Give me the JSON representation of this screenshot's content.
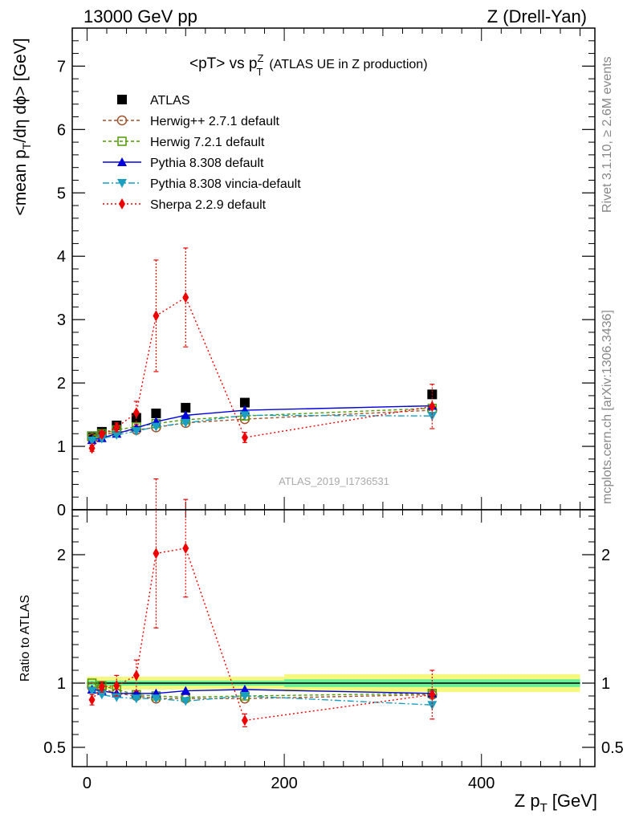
{
  "header": {
    "left": "13000 GeV pp",
    "right": "Z (Drell-Yan)"
  },
  "side_text": {
    "rivet": "Rivet 3.1.10, ≥ 2.6M events",
    "mcplots": "mcplots.cern.ch [arXiv:1306.3436]"
  },
  "chart_data": [
    {
      "type": "line",
      "title_main": "<pT> vs p",
      "title_sup": "Z",
      "title_sub": "T",
      "title_extra": "(ATLAS UE in Z production)",
      "ylabel": "<mean p_T/dη dϕ> [GeV]",
      "ylim": [
        0,
        7.6
      ],
      "xlim": [
        -15,
        515
      ],
      "watermark": "ATLAS_2019_I1736531",
      "y_ticks": [
        {
          "v": 0,
          "label": "0"
        },
        {
          "v": 1,
          "label": "1"
        },
        {
          "v": 2,
          "label": "2"
        },
        {
          "v": 3,
          "label": "3"
        },
        {
          "v": 4,
          "label": "4"
        },
        {
          "v": 5,
          "label": "5"
        },
        {
          "v": 6,
          "label": "6"
        },
        {
          "v": 7,
          "label": "7"
        }
      ],
      "legend_position": "top-left",
      "series": [
        {
          "name": "ATLAS",
          "color": "#000000",
          "marker": "square",
          "dash": "none",
          "x": [
            5,
            15,
            30,
            50,
            70,
            100,
            160,
            350
          ],
          "y": [
            1.16,
            1.23,
            1.33,
            1.45,
            1.52,
            1.61,
            1.69,
            1.82
          ]
        },
        {
          "name": "Herwig++ 2.7.1 default",
          "color": "#a0522d",
          "marker": "circle-open",
          "dash": "4,3",
          "x": [
            5,
            15,
            30,
            50,
            70,
            100,
            160,
            350
          ],
          "y": [
            1.13,
            1.18,
            1.22,
            1.26,
            1.3,
            1.37,
            1.43,
            1.57
          ]
        },
        {
          "name": "Herwig 7.2.1 default",
          "color": "#4e9a06",
          "marker": "square-open",
          "dash": "4,3",
          "x": [
            5,
            15,
            30,
            50,
            70,
            100,
            160,
            350
          ],
          "y": [
            1.16,
            1.2,
            1.26,
            1.31,
            1.36,
            1.42,
            1.48,
            1.6
          ]
        },
        {
          "name": "Pythia 8.308 default",
          "color": "#0000dd",
          "marker": "triangle-up",
          "dash": "none",
          "x": [
            5,
            15,
            30,
            50,
            70,
            100,
            160,
            350
          ],
          "y": [
            1.1,
            1.13,
            1.2,
            1.29,
            1.39,
            1.49,
            1.57,
            1.64
          ]
        },
        {
          "name": "Pythia 8.308 vincia-default",
          "color": "#1a9fc0",
          "marker": "triangle-down",
          "dash": "8,3,2,3",
          "x": [
            5,
            15,
            30,
            50,
            70,
            100,
            160,
            350
          ],
          "y": [
            1.09,
            1.12,
            1.18,
            1.24,
            1.31,
            1.37,
            1.49,
            1.48
          ]
        },
        {
          "name": "Sherpa 2.2.9 default",
          "color": "#ee0000",
          "marker": "diamond",
          "dash": "2,3",
          "x": [
            5,
            15,
            30,
            50,
            70,
            100,
            160,
            350
          ],
          "y": [
            0.97,
            1.19,
            1.3,
            1.53,
            3.06,
            3.35,
            1.14,
            1.63
          ],
          "yerr": [
            0.05,
            0.04,
            0.07,
            0.18,
            0.88,
            0.78,
            0.08,
            0.35
          ]
        }
      ]
    },
    {
      "type": "line",
      "ylabel": "Ratio to ATLAS",
      "xlabel_main": "Z p",
      "xlabel_sub": "T",
      "xlabel_unit": "[GeV]",
      "ylim": [
        0.35,
        2.35
      ],
      "xlim": [
        -15,
        515
      ],
      "y_ticks": [
        {
          "v": 0.5,
          "label": "0.5"
        },
        {
          "v": 1,
          "label": "1"
        },
        {
          "v": 2,
          "label": "2"
        }
      ],
      "x_ticks": [
        {
          "v": 0,
          "label": "0"
        },
        {
          "v": 200,
          "label": "200"
        },
        {
          "v": 400,
          "label": "400"
        }
      ],
      "band": {
        "segments": [
          {
            "x0": 0,
            "x1": 200,
            "inner": 0.02,
            "outer": 0.05
          },
          {
            "x0": 200,
            "x1": 500,
            "inner": 0.03,
            "outer": 0.07
          }
        ],
        "inner_color": "#66ee99",
        "outer_color": "#f6f77f"
      },
      "series": [
        {
          "name": "Herwig++ 2.7.1 default",
          "color": "#a0522d",
          "marker": "circle-open",
          "dash": "4,3",
          "x": [
            5,
            15,
            30,
            50,
            70,
            100,
            160,
            350
          ],
          "y": [
            0.97,
            0.96,
            0.92,
            0.9,
            0.88,
            0.88,
            0.88,
            0.91
          ]
        },
        {
          "name": "Herwig 7.2.1 default",
          "color": "#4e9a06",
          "marker": "square-open",
          "dash": "4,3",
          "x": [
            5,
            15,
            30,
            50,
            70,
            100,
            160,
            350
          ],
          "y": [
            1.0,
            0.98,
            0.95,
            0.91,
            0.9,
            0.89,
            0.9,
            0.92
          ]
        },
        {
          "name": "Pythia 8.308 default",
          "color": "#0000dd",
          "marker": "triangle-up",
          "dash": "none",
          "x": [
            5,
            15,
            30,
            50,
            70,
            100,
            160,
            350
          ],
          "y": [
            0.95,
            0.94,
            0.92,
            0.92,
            0.92,
            0.94,
            0.95,
            0.92
          ]
        },
        {
          "name": "Pythia 8.308 vincia-default",
          "color": "#1a9fc0",
          "marker": "triangle-down",
          "dash": "8,3,2,3",
          "x": [
            5,
            15,
            30,
            50,
            70,
            100,
            160,
            350
          ],
          "y": [
            0.94,
            0.91,
            0.89,
            0.88,
            0.88,
            0.86,
            0.9,
            0.83
          ]
        },
        {
          "name": "Sherpa 2.2.9 default",
          "color": "#ee0000",
          "marker": "diamond",
          "dash": "2,3",
          "x": [
            5,
            15,
            30,
            50,
            70,
            100,
            160,
            350
          ],
          "y": [
            0.87,
            0.97,
            0.98,
            1.06,
            2.01,
            2.05,
            0.71,
            0.91
          ],
          "yerr": [
            0.04,
            0.04,
            0.08,
            0.12,
            0.58,
            0.38,
            0.05,
            0.19
          ]
        }
      ]
    }
  ]
}
